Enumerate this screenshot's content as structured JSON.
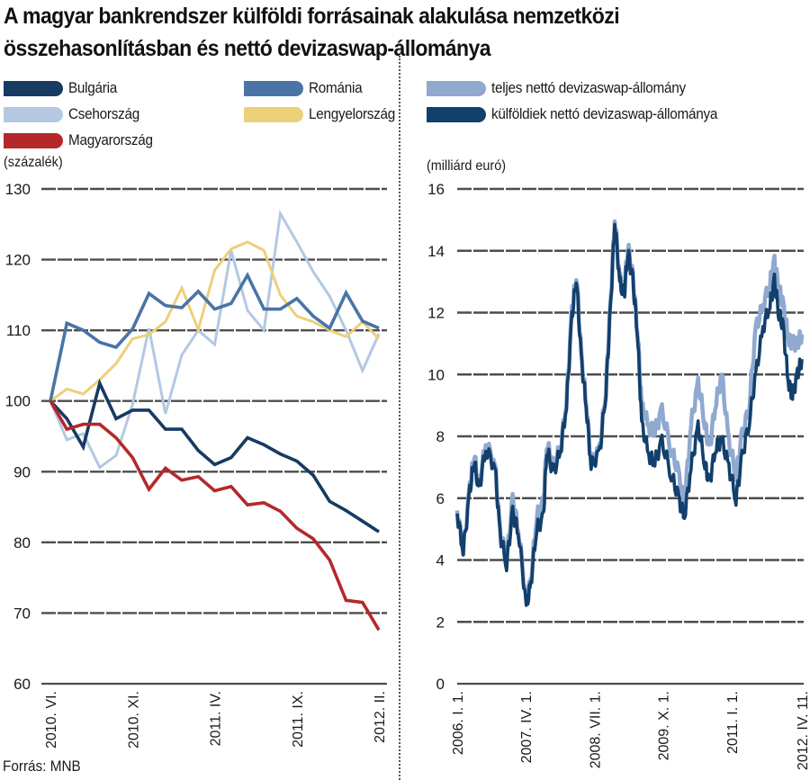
{
  "title": "A magyar bankrendszer külföldi forrásainak alakulása nemzetközi összehasonlításban és nettó devizaswap-állománya",
  "source": "Forrás: MNB",
  "chart_data": [
    {
      "type": "line",
      "unit_label": "(százalék)",
      "ylim": [
        60,
        130
      ],
      "yticks": [
        60,
        70,
        80,
        90,
        100,
        110,
        120,
        130
      ],
      "ytick_labels": [
        "60",
        "70",
        "80",
        "90",
        "100",
        "110",
        "120",
        "130"
      ],
      "grid": true,
      "x_index": [
        0,
        1,
        2,
        3,
        4,
        5,
        6,
        7,
        8,
        9,
        10,
        11,
        12,
        13,
        14,
        15,
        16,
        17,
        18,
        19,
        20
      ],
      "xticks": [
        0,
        5,
        10,
        15,
        20
      ],
      "xtick_labels": [
        "2010. VI.",
        "2010. XI.",
        "2011. IV.",
        "2011. IX.",
        "2012. II."
      ],
      "legend_position": "top",
      "series": [
        {
          "name": "Bulgária",
          "color": "#173a63",
          "values": [
            100,
            97.5,
            93.5,
            102.5,
            97.5,
            98.7,
            98.7,
            96,
            96,
            93,
            91,
            92,
            94.8,
            93.8,
            92.5,
            91.5,
            89.5,
            85.8,
            84.5,
            83,
            81.5
          ]
        },
        {
          "name": "Románia",
          "color": "#4a74a6",
          "values": [
            100,
            111,
            110,
            108.3,
            107.6,
            110.2,
            115.2,
            113.5,
            113.2,
            115.5,
            113,
            113.8,
            117.8,
            113,
            113,
            114.5,
            112,
            110.3,
            115.3,
            111.3,
            110.3
          ]
        },
        {
          "name": "Csehország",
          "color": "#b4c8e2",
          "values": [
            100,
            94.5,
            95.4,
            90.6,
            92.3,
            99.5,
            110.3,
            98.2,
            106.5,
            110,
            108,
            121.3,
            112.8,
            110,
            126.5,
            122.5,
            118.3,
            114.8,
            110,
            104.3,
            109.5
          ]
        },
        {
          "name": "Lengyelország",
          "color": "#ecd07a",
          "values": [
            100,
            101.7,
            101,
            103,
            105.3,
            108.8,
            109.4,
            111.2,
            116,
            110.1,
            118.5,
            121.5,
            122.5,
            121.3,
            115,
            112,
            111.2,
            110,
            109.1,
            111.2,
            108.8
          ]
        },
        {
          "name": "Magyarország",
          "color": "#b5282a",
          "values": [
            100,
            96,
            96.7,
            96.7,
            94.8,
            92,
            87.5,
            90.5,
            88.8,
            89.3,
            87.3,
            87.9,
            85.3,
            85.6,
            84.4,
            82,
            80.5,
            77.5,
            71.8,
            71.5,
            67.6
          ]
        }
      ]
    },
    {
      "type": "area",
      "unit_label": "(milliárd euró)",
      "ylim": [
        0,
        16
      ],
      "yticks": [
        0,
        2,
        4,
        6,
        8,
        10,
        12,
        14,
        16
      ],
      "ytick_labels": [
        "0",
        "2",
        "4",
        "6",
        "8",
        "10",
        "12",
        "14",
        "16"
      ],
      "grid": true,
      "xlim": [
        2006.0,
        2012.28
      ],
      "xticks": [
        2006.0,
        2007.25,
        2008.5,
        2009.75,
        2011.0,
        2012.28
      ],
      "xtick_labels": [
        "2006. I. 1.",
        "2007. IV. 1.",
        "2008. VII. 1.",
        "2009. X. 1.",
        "2011. I. 1.",
        "2012. IV. 11."
      ],
      "legend_position": "top",
      "x": [
        2006.0,
        2006.11,
        2006.23,
        2006.31,
        2006.39,
        2006.52,
        2006.69,
        2006.78,
        2006.9,
        2007.01,
        2007.11,
        2007.26,
        2007.34,
        2007.45,
        2007.57,
        2007.63,
        2007.75,
        2007.88,
        2007.99,
        2008.09,
        2008.17,
        2008.26,
        2008.35,
        2008.44,
        2008.6,
        2008.71,
        2008.79,
        2008.87,
        2008.96,
        2009.04,
        2009.11,
        2009.2,
        2009.28,
        2009.36,
        2009.49,
        2009.6,
        2009.73,
        2009.9,
        2010.03,
        2010.14,
        2010.26,
        2010.39,
        2010.51,
        2010.59,
        2010.7,
        2010.82,
        2010.95,
        2011.08,
        2011.19,
        2011.32,
        2011.44,
        2011.57,
        2011.7,
        2011.78,
        2011.86,
        2011.94,
        2012.03,
        2012.11,
        2012.2,
        2012.28
      ],
      "series": [
        {
          "name": "teljes nettó devizaswap-állomány",
          "color": "#8fa9cf",
          "values": [
            5.6,
            4.3,
            6.3,
            7.5,
            6.3,
            7.8,
            7.1,
            4.9,
            4.0,
            5.9,
            5.1,
            2.6,
            3.3,
            5.5,
            5.8,
            7.8,
            7.0,
            7.6,
            9.1,
            12.0,
            13.3,
            10.6,
            9.1,
            7.1,
            7.6,
            9.6,
            12.1,
            15.1,
            13.1,
            12.6,
            14.2,
            13.1,
            11.6,
            9.0,
            8.3,
            8.2,
            8.8,
            7.6,
            6.8,
            5.8,
            8.4,
            9.7,
            8.5,
            7.5,
            9.0,
            10.0,
            7.8,
            6.8,
            8.0,
            9.0,
            11.5,
            12.2,
            13.0,
            13.6,
            12.8,
            12.2,
            11.2,
            11.0,
            11.0,
            11.3
          ]
        },
        {
          "name": "külföldiek nettó devizaswap-állománya",
          "color": "#123f6b",
          "values": [
            5.5,
            4.3,
            6.2,
            7.3,
            6.2,
            7.6,
            7.0,
            4.8,
            3.9,
            5.5,
            5.0,
            2.5,
            3.2,
            5.1,
            5.3,
            7.6,
            6.8,
            7.5,
            9.0,
            11.8,
            13.2,
            10.5,
            9.0,
            7.0,
            7.5,
            9.5,
            12.0,
            15.0,
            13.0,
            12.5,
            14.0,
            13.0,
            11.5,
            8.4,
            7.4,
            7.2,
            7.8,
            6.8,
            6.0,
            5.4,
            7.0,
            8.3,
            7.2,
            6.4,
            7.6,
            7.9,
            7.0,
            6.0,
            7.3,
            8.5,
            10.0,
            11.5,
            12.3,
            13.0,
            12.0,
            11.5,
            9.8,
            9.3,
            10.0,
            10.5
          ]
        }
      ]
    }
  ]
}
